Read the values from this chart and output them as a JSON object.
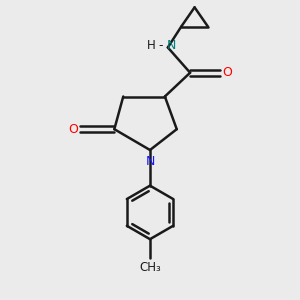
{
  "background_color": "#ebebeb",
  "bond_color": "#1a1a1a",
  "N_color": "#1414ff",
  "O_color": "#ff0000",
  "NH_color": "#008080",
  "line_width": 1.8,
  "font_size": 9,
  "figsize": [
    3.0,
    3.0
  ],
  "dpi": 100,
  "xlim": [
    0,
    10
  ],
  "ylim": [
    0,
    10
  ]
}
